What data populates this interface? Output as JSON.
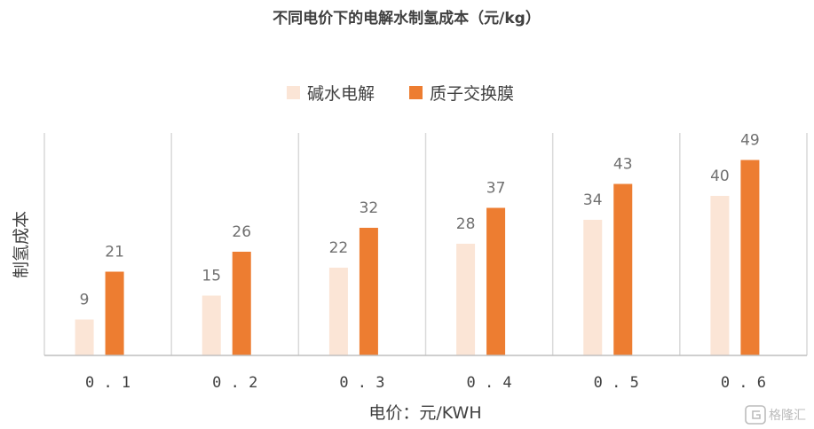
{
  "chart_data": {
    "type": "bar",
    "title": "不同电价下的电解水制氢成本（元/kg）",
    "xlabel": "电价：元/KWH",
    "ylabel": "制氢成本",
    "categories": [
      "0.1",
      "0.2",
      "0.3",
      "0.4",
      "0.5",
      "0.6"
    ],
    "series": [
      {
        "name": "碱水电解",
        "values": [
          9,
          15,
          22,
          28,
          34,
          40
        ],
        "color": "#fbe5d6"
      },
      {
        "name": "质子交换膜",
        "values": [
          21,
          26,
          32,
          37,
          43,
          49
        ],
        "color": "#ed7d31"
      }
    ],
    "ylim": [
      0,
      55
    ],
    "legend": "top",
    "grid": "vertical category separators",
    "data_labels": true
  },
  "watermark": {
    "text": "格隆汇",
    "icon": "g-logo-icon"
  }
}
